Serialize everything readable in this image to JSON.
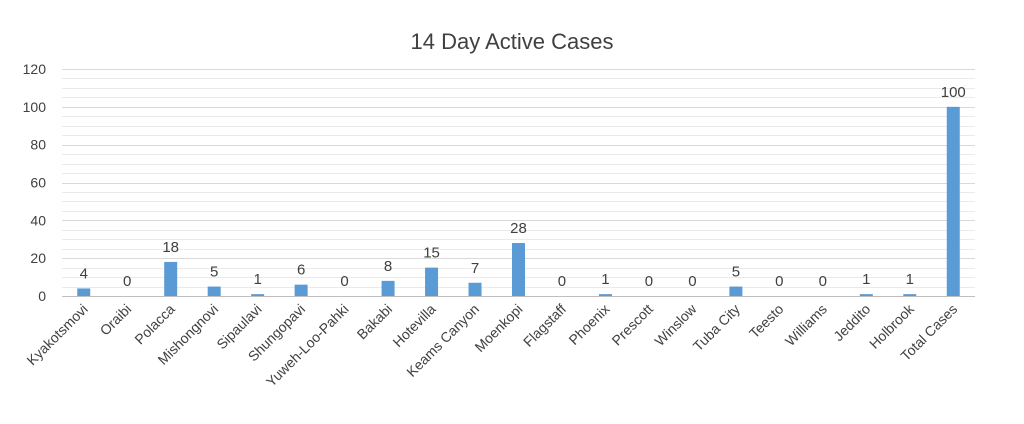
{
  "chart_data": {
    "type": "bar",
    "title": "14 Day Active Cases",
    "xlabel": "",
    "ylabel": "",
    "ylim": [
      0,
      120
    ],
    "yticks": [
      0,
      20,
      40,
      60,
      80,
      100,
      120
    ],
    "grid": true,
    "legend": "none",
    "bar_color": "#5B9BD5",
    "categories": [
      "Kyakotsmovi",
      "Oraibi",
      "Polacca",
      "Mishongnovi",
      "Sipaulavi",
      "Shungopavi",
      "Yuweh-Loo-Pahki",
      "Bakabi",
      "Hotevilla",
      "Keams Canyon",
      "Moenkopi",
      "Flagstaff",
      "Phoenix",
      "Prescott",
      "Winslow",
      "Tuba City",
      "Teesto",
      "Williams",
      "Jeddito",
      "Holbrook",
      "Total Cases"
    ],
    "values": [
      4,
      0,
      18,
      5,
      1,
      6,
      0,
      8,
      15,
      7,
      28,
      0,
      1,
      0,
      0,
      5,
      0,
      0,
      1,
      1,
      100
    ]
  }
}
